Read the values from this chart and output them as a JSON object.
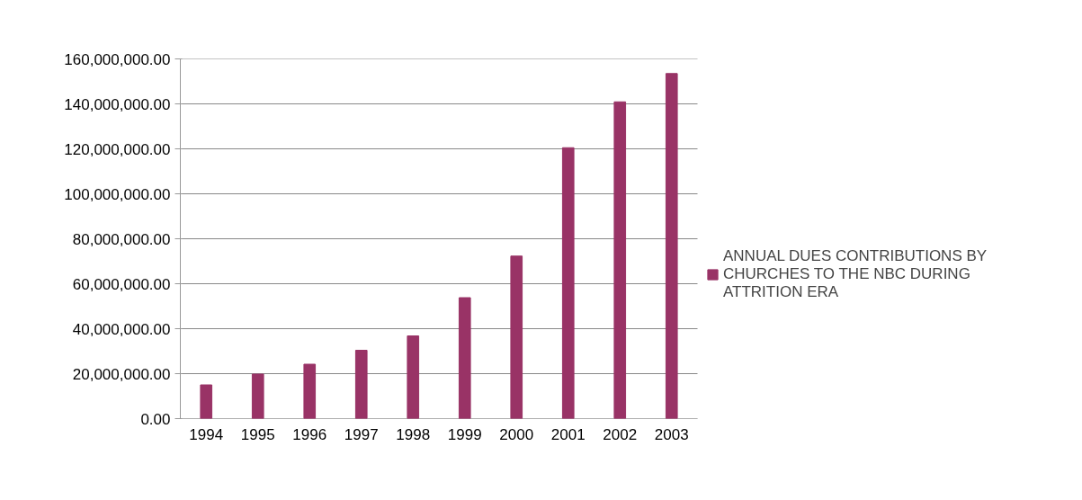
{
  "chart_data": {
    "type": "bar",
    "categories": [
      "1994",
      "1995",
      "1996",
      "1997",
      "1998",
      "1999",
      "2000",
      "2001",
      "2002",
      "2003"
    ],
    "series": [
      {
        "name": "ANNUAL DUES CONTRIBUTIONS BY CHURCHES TO THE NBC DURING ATTRITION ERA",
        "color": "#993366",
        "values": [
          15000000,
          19800000,
          24200000,
          30400000,
          36800000,
          53800000,
          72300000,
          120500000,
          140900000,
          153500000
        ]
      }
    ],
    "ylim": [
      0,
      160000000
    ],
    "yticks": [
      {
        "value": 0,
        "label": "0.00"
      },
      {
        "value": 20000000,
        "label": "20,000,000.00"
      },
      {
        "value": 40000000,
        "label": "40,000,000.00"
      },
      {
        "value": 60000000,
        "label": "60,000,000.00"
      },
      {
        "value": 80000000,
        "label": "80,000,000.00"
      },
      {
        "value": 100000000,
        "label": "100,000,000.00"
      },
      {
        "value": 120000000,
        "label": "120,000,000.00"
      },
      {
        "value": 140000000,
        "label": "140,000,000.00"
      },
      {
        "value": 160000000,
        "label": "160,000,000.00"
      }
    ],
    "grid": "y",
    "legend": "right"
  }
}
